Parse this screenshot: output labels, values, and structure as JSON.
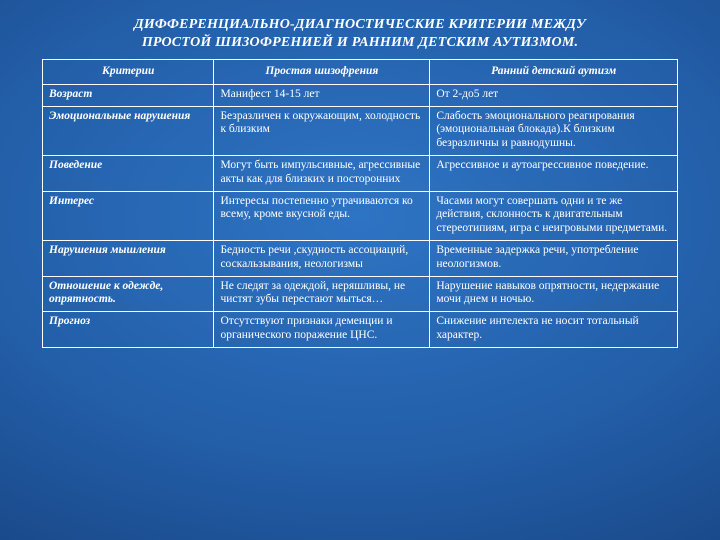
{
  "title_line1": "ДИФФЕРЕНЦИАЛЬНО-ДИАГНОСТИЧЕСКИЕ КРИТЕРИИ МЕЖДУ",
  "title_line2": "ПРОСТОЙ ШИЗОФРЕНИЕЙ И РАННИМ ДЕТСКИМ АУТИЗМОМ.",
  "table": {
    "headers": [
      "Критерии",
      "Простая шизофрения",
      "Ранний детский аутизм"
    ],
    "rows": [
      {
        "criteria": "Возраст",
        "col2": "Манифест 14-15 лет",
        "col3": "От 2-до5 лет"
      },
      {
        "criteria": "Эмоциональные нарушения",
        "col2": "Безразличен к окружающим, холодность к близким",
        "col3": "Слабость эмоционального реагирования (эмоциональная блокада).К близким безразличны и равнодушны."
      },
      {
        "criteria": "Поведение",
        "col2": "Могут быть импульсивные, агрессивные акты как для близких и посторонних",
        "col3": "Агрессивное и аутоагрессивное поведение."
      },
      {
        "criteria": "Интерес",
        "col2": "Интересы постепенно утрачиваются ко всему, кроме вкусной еды.",
        "col3": "Часами могут совершать одни и те же действия, склонность к двигательным стереотипиям, игра с неигровыми предметами."
      },
      {
        "criteria": "Нарушения мышления",
        "col2": "Бедность речи ,скудность ассоциаций, соскальзывания, неологизмы",
        "col3": "Временные задержка речи, употребление неологизмов."
      },
      {
        "criteria": "Отношение  к одежде, опрятность.",
        "col2": "Не следят за одеждой, неряшливы, не чистят зубы перестают мыться…",
        "col3": "Нарушение навыков опрятности, недержание мочи днем и ночью."
      },
      {
        "criteria": "Прогноз",
        "col2": "Отсутствуют признаки деменции и органического поражение ЦНС.",
        "col3": "Снижение интелекта не носит тотальный характер."
      }
    ]
  }
}
